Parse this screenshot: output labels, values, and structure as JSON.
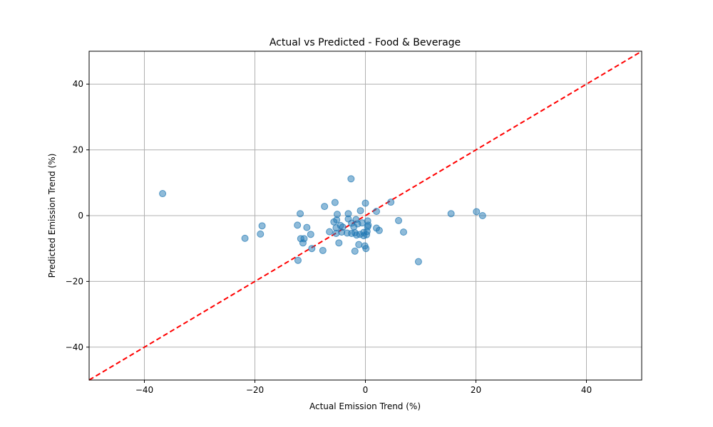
{
  "chart_data": {
    "type": "scatter",
    "title": "Actual vs Predicted - Food & Beverage",
    "xlabel": "Actual Emission Trend (%)",
    "ylabel": "Predicted Emission Trend (%)",
    "xlim": [
      -50,
      50
    ],
    "ylim": [
      -50,
      50
    ],
    "xticks": [
      -40,
      -20,
      0,
      20,
      40
    ],
    "yticks": [
      -40,
      -20,
      0,
      20,
      40
    ],
    "xtick_labels": [
      "−40",
      "−20",
      "0",
      "20",
      "40"
    ],
    "ytick_labels": [
      "−40",
      "−20",
      "0",
      "20",
      "40"
    ],
    "grid": true,
    "point_color": "#1f77b4",
    "reference_line_color": "#ff0000",
    "reference_line": {
      "from": [
        -50,
        -50
      ],
      "to": [
        50,
        50
      ],
      "style": "dashed"
    },
    "points": [
      {
        "x": -36.7,
        "y": 6.7
      },
      {
        "x": -21.8,
        "y": -6.9
      },
      {
        "x": -19.0,
        "y": -5.6
      },
      {
        "x": -18.7,
        "y": -3.1
      },
      {
        "x": -12.3,
        "y": -2.9
      },
      {
        "x": -11.8,
        "y": 0.6
      },
      {
        "x": -12.2,
        "y": -13.6
      },
      {
        "x": -11.7,
        "y": -7.0
      },
      {
        "x": -11.3,
        "y": -8.3
      },
      {
        "x": -11.1,
        "y": -7.0
      },
      {
        "x": -10.6,
        "y": -3.6
      },
      {
        "x": -9.9,
        "y": -5.7
      },
      {
        "x": -9.7,
        "y": -10.0
      },
      {
        "x": -7.7,
        "y": -10.6
      },
      {
        "x": -7.4,
        "y": 2.8
      },
      {
        "x": -6.5,
        "y": -4.9
      },
      {
        "x": -5.7,
        "y": -1.9
      },
      {
        "x": -5.5,
        "y": 4.0
      },
      {
        "x": -5.2,
        "y": -1.3
      },
      {
        "x": -5.3,
        "y": -3.7
      },
      {
        "x": -5.1,
        "y": 0.4
      },
      {
        "x": -5.3,
        "y": -5.4
      },
      {
        "x": -4.8,
        "y": -8.3
      },
      {
        "x": -4.5,
        "y": -3.0
      },
      {
        "x": -4.3,
        "y": -5.0
      },
      {
        "x": -4.1,
        "y": -3.5
      },
      {
        "x": -3.3,
        "y": -5.3
      },
      {
        "x": -3.1,
        "y": 0.6
      },
      {
        "x": -3.1,
        "y": -1.0
      },
      {
        "x": -2.6,
        "y": 11.2
      },
      {
        "x": -2.5,
        "y": -5.4
      },
      {
        "x": -2.5,
        "y": -2.3
      },
      {
        "x": -2.1,
        "y": -3.4
      },
      {
        "x": -1.9,
        "y": -10.8
      },
      {
        "x": -1.9,
        "y": -5.2
      },
      {
        "x": -1.7,
        "y": -1.2
      },
      {
        "x": -1.6,
        "y": -5.9
      },
      {
        "x": -1.4,
        "y": -2.5
      },
      {
        "x": -1.2,
        "y": -8.8
      },
      {
        "x": -1.0,
        "y": -5.7
      },
      {
        "x": -0.9,
        "y": 1.5
      },
      {
        "x": -0.6,
        "y": -2.2
      },
      {
        "x": -0.3,
        "y": -5.1
      },
      {
        "x": -0.3,
        "y": -6.1
      },
      {
        "x": -0.1,
        "y": -9.2
      },
      {
        "x": 0.0,
        "y": 3.8
      },
      {
        "x": 0.1,
        "y": -10.0
      },
      {
        "x": 0.2,
        "y": -5.8
      },
      {
        "x": 0.3,
        "y": -4.8
      },
      {
        "x": 0.4,
        "y": -3.4
      },
      {
        "x": 0.4,
        "y": -1.6
      },
      {
        "x": 0.5,
        "y": -2.9
      },
      {
        "x": 2.0,
        "y": 1.3
      },
      {
        "x": 2.0,
        "y": -3.8
      },
      {
        "x": 2.5,
        "y": -4.5
      },
      {
        "x": 4.6,
        "y": 4.1
      },
      {
        "x": 6.0,
        "y": -1.5
      },
      {
        "x": 6.9,
        "y": -5.0
      },
      {
        "x": 9.6,
        "y": -14.0
      },
      {
        "x": 15.5,
        "y": 0.6
      },
      {
        "x": 20.1,
        "y": 1.2
      },
      {
        "x": 21.2,
        "y": 0.0
      }
    ]
  }
}
